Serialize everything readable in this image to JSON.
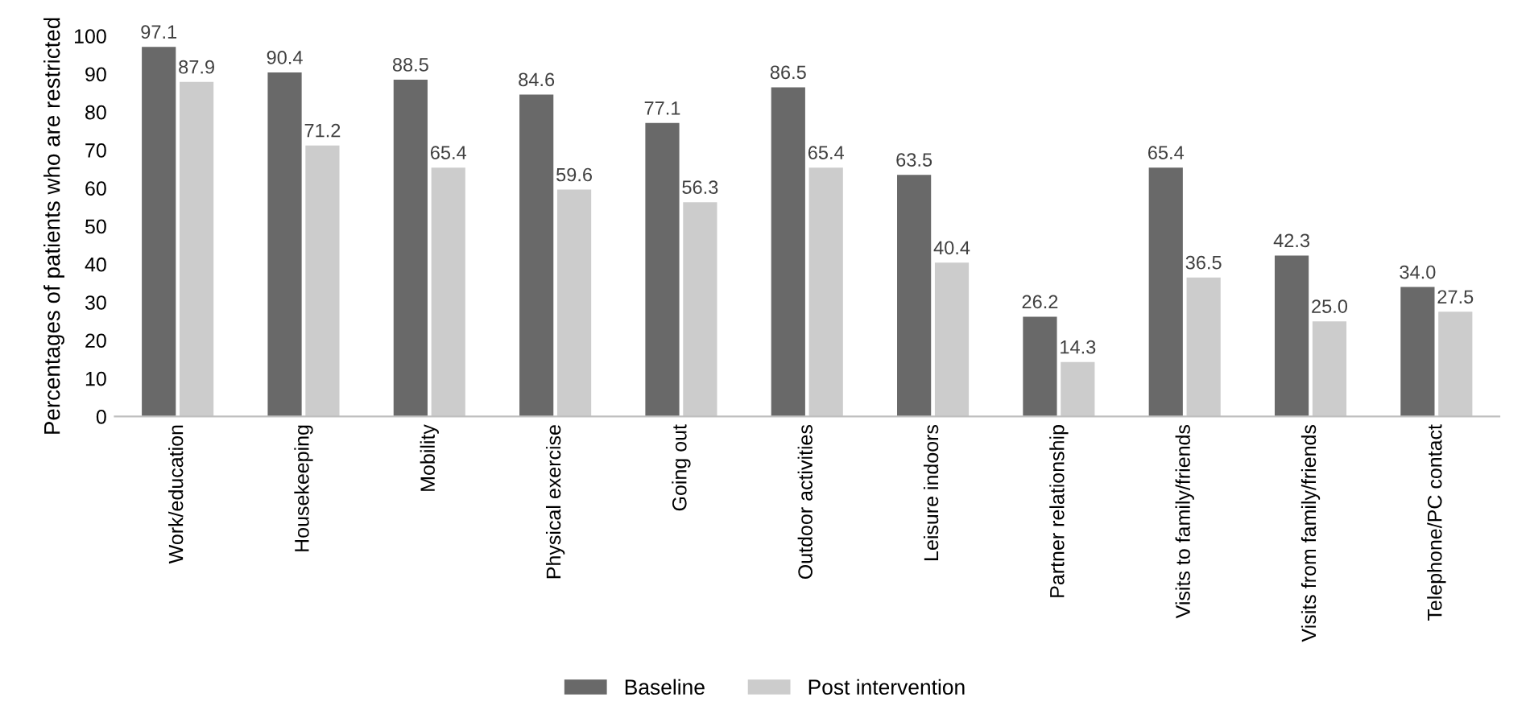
{
  "chart_data": {
    "type": "bar",
    "ylabel": "Percentages of patients who are restricted",
    "categories": [
      "Work/education",
      "Housekeeping",
      "Mobility",
      "Physical exercise",
      "Going out",
      "Outdoor activities",
      "Leisure indoors",
      "Partner relationship",
      "Visits to family/friends",
      "Visits from family/friends",
      "Telephone/PC contact"
    ],
    "series": [
      {
        "name": "Baseline",
        "color": "#696969",
        "values": [
          97.1,
          90.4,
          88.5,
          84.6,
          77.1,
          86.5,
          63.5,
          26.2,
          65.4,
          42.3,
          34.0
        ],
        "value_labels": [
          "97.1",
          "90.4",
          "88.5",
          "84.6",
          "77.1",
          "86.5",
          "63.5",
          "26.2",
          "65.4",
          "42.3",
          "34.0"
        ]
      },
      {
        "name": "Post intervention",
        "color": "#cccccc",
        "values": [
          87.9,
          71.2,
          65.4,
          59.6,
          56.3,
          65.4,
          40.4,
          14.3,
          36.5,
          25.0,
          27.5
        ],
        "value_labels": [
          "87.9",
          "71.2",
          "65.4",
          "59.6",
          "56.3",
          "65.4",
          "40.4",
          "14.3",
          "36.5",
          "25.0",
          "27.5"
        ]
      }
    ],
    "ylim": [
      0,
      100
    ],
    "yticks": [
      0,
      10,
      20,
      30,
      40,
      50,
      60,
      70,
      80,
      90,
      100
    ],
    "grid": false,
    "legend": "bottom"
  }
}
